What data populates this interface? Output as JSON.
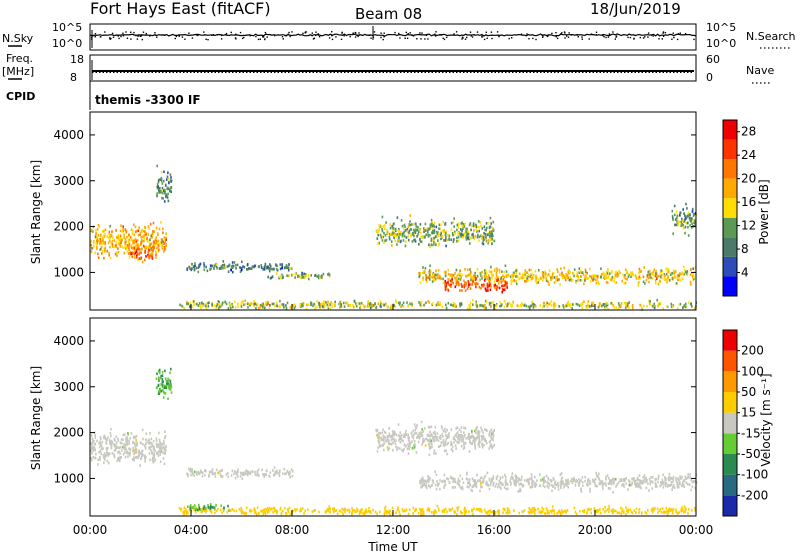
{
  "header": {
    "station": "Fort Hays East (fitACF)",
    "beam": "Beam 08",
    "date": "18/Jun/2019"
  },
  "top_panels": {
    "nsky_label": "N.Sky",
    "nsky_ticks": [
      "10^5",
      "10^0"
    ],
    "nsearch_label": "N.Search",
    "nsearch_ticks": [
      "10^5",
      "10^0"
    ],
    "freq_label": "Freq.",
    "freq_unit": "[MHz]",
    "freq_ticks": [
      "18",
      "8"
    ],
    "nave_label": "Nave",
    "nave_ticks": [
      "60",
      "0"
    ],
    "cpid_label": "CPID",
    "cpid_value": "themis -3300 IF"
  },
  "power_panel": {
    "ylabel": "Slant Range [km]",
    "yticks": [
      "4000",
      "3000",
      "2000",
      "1000"
    ],
    "colorbar_label": "Power [dB]",
    "colorbar_ticks": [
      "28",
      "24",
      "20",
      "16",
      "12",
      "8",
      "4"
    ],
    "colors": [
      "#0000ff",
      "#2a4db8",
      "#4a7a6a",
      "#5a9a55",
      "#ffdd00",
      "#ffaa00",
      "#ff7700",
      "#ff3300",
      "#ee0000"
    ]
  },
  "velocity_panel": {
    "ylabel": "Slant Range [km]",
    "yticks": [
      "4000",
      "3000",
      "2000",
      "1000"
    ],
    "colorbar_label": "Velocity [m s⁻¹]",
    "colorbar_ticks": [
      "200",
      "100",
      "50",
      "15",
      "-15",
      "-50",
      "-100",
      "-200"
    ],
    "colors": [
      "#1a2aa8",
      "#2a6a80",
      "#2a8a50",
      "#66cc33",
      "#c8c8c0",
      "#ffcc00",
      "#ff9900",
      "#ff5500",
      "#ee0000"
    ]
  },
  "xaxis": {
    "ticks": [
      "00:00",
      "04:00",
      "08:00",
      "12:00",
      "16:00",
      "20:00",
      "00:00"
    ],
    "label": "Time UT"
  },
  "chart_data": [
    {
      "type": "heatmap",
      "title": "Fort Hays East (fitACF)",
      "xlabel": "Time UT",
      "ylabel": "Slant Range [km]",
      "colorbar": "Power [dB]",
      "xlim": [
        0,
        24
      ],
      "ylim": [
        180,
        4500
      ],
      "clim": [
        0,
        30
      ],
      "regions": [
        {
          "t": [
            0.0,
            3.0
          ],
          "r_center": 1700,
          "r_width": 500,
          "power": 18
        },
        {
          "t": [
            1.5,
            2.5
          ],
          "r_center": 1450,
          "r_width": 200,
          "power": 24
        },
        {
          "t": [
            2.6,
            3.2
          ],
          "r_center": 2900,
          "r_width": 500,
          "power": 10
        },
        {
          "t": [
            3.8,
            8.0
          ],
          "r_center": 1150,
          "r_width": 150,
          "power": 8
        },
        {
          "t": [
            7.0,
            9.5
          ],
          "r_center": 950,
          "r_width": 100,
          "power": 12
        },
        {
          "t": [
            11.3,
            16.0
          ],
          "r_center": 1900,
          "r_width": 400,
          "power": 12
        },
        {
          "t": [
            13.0,
            24.0
          ],
          "r_center": 950,
          "r_width": 250,
          "power": 16
        },
        {
          "t": [
            14.0,
            16.5
          ],
          "r_center": 750,
          "r_width": 200,
          "power": 24
        },
        {
          "t": [
            3.5,
            24.0
          ],
          "r_center": 320,
          "r_width": 120,
          "power": 14
        },
        {
          "t": [
            23.0,
            24.0
          ],
          "r_center": 2200,
          "r_width": 400,
          "power": 10
        }
      ]
    },
    {
      "type": "heatmap",
      "title": "Beam 08",
      "xlabel": "Time UT",
      "ylabel": "Slant Range [km]",
      "colorbar": "Velocity [m s-1]",
      "xlim": [
        0,
        24
      ],
      "ylim": [
        180,
        4500
      ],
      "clim": [
        -200,
        200
      ],
      "regions": [
        {
          "t": [
            0.0,
            3.0
          ],
          "r_center": 1700,
          "r_width": 500,
          "velocity": 0
        },
        {
          "t": [
            2.6,
            3.2
          ],
          "r_center": 3100,
          "r_width": 500,
          "velocity": 50
        },
        {
          "t": [
            3.8,
            8.0
          ],
          "r_center": 1150,
          "r_width": 150,
          "velocity": 0
        },
        {
          "t": [
            11.3,
            16.0
          ],
          "r_center": 1900,
          "r_width": 400,
          "velocity": 0
        },
        {
          "t": [
            13.0,
            24.0
          ],
          "r_center": 950,
          "r_width": 250,
          "velocity": 0
        },
        {
          "t": [
            3.5,
            24.0
          ],
          "r_center": 320,
          "r_width": 120,
          "velocity": -30
        },
        {
          "t": [
            3.8,
            5.5
          ],
          "r_center": 400,
          "r_width": 100,
          "velocity": 50
        }
      ]
    }
  ]
}
